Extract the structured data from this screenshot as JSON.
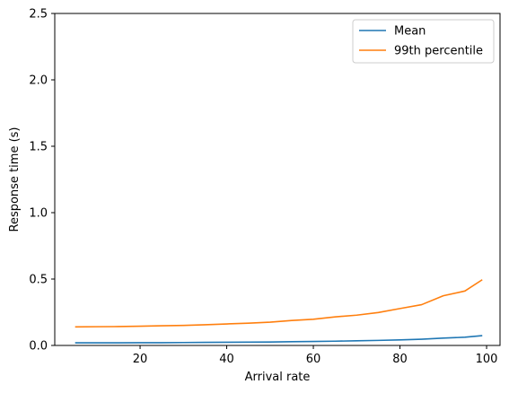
{
  "chart_data": {
    "type": "line",
    "xlabel": "Arrival rate",
    "ylabel": "Response time (s)",
    "xlim": [
      0.3,
      103.1
    ],
    "ylim": [
      0,
      2.5
    ],
    "xticks": [
      "20",
      "40",
      "60",
      "80",
      "100"
    ],
    "yticks": [
      "0.0",
      "0.5",
      "1.0",
      "1.5",
      "2.0",
      "2.5"
    ],
    "grid": false,
    "legend_position": "top-right",
    "x": [
      5,
      10,
      15,
      20,
      25,
      30,
      35,
      40,
      45,
      50,
      55,
      60,
      65,
      70,
      75,
      80,
      85,
      90,
      95,
      99
    ],
    "series": [
      {
        "name": "Mean",
        "color": "#1f77b4",
        "values": [
          0.02,
          0.02,
          0.02,
          0.021,
          0.021,
          0.022,
          0.023,
          0.024,
          0.025,
          0.026,
          0.028,
          0.03,
          0.032,
          0.035,
          0.038,
          0.042,
          0.047,
          0.055,
          0.062,
          0.074
        ]
      },
      {
        "name": "99th percentile",
        "color": "#ff7f0e",
        "values": [
          0.14,
          0.141,
          0.142,
          0.145,
          0.148,
          0.151,
          0.156,
          0.162,
          0.168,
          0.175,
          0.188,
          0.197,
          0.215,
          0.228,
          0.248,
          0.278,
          0.307,
          0.374,
          0.41,
          0.495
        ]
      }
    ]
  }
}
